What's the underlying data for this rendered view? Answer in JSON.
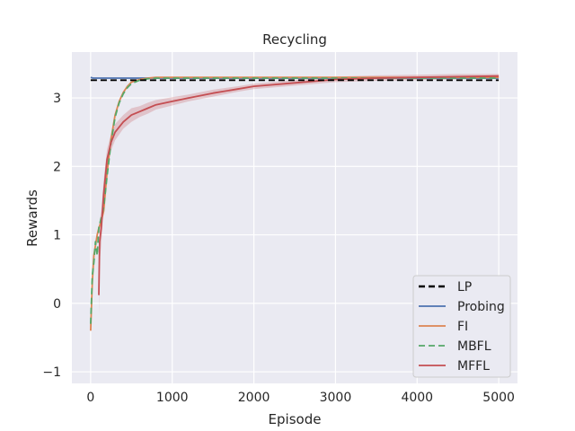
{
  "chart_data": {
    "type": "line",
    "title": "Recycling",
    "xlabel": "Episode",
    "ylabel": "Rewards",
    "xlim": [
      -230,
      5230
    ],
    "ylim": [
      -1.17,
      3.67
    ],
    "xticks": [
      0,
      1000,
      2000,
      3000,
      4000,
      5000
    ],
    "xtick_labels": [
      "0",
      "1000",
      "2000",
      "3000",
      "4000",
      "5000"
    ],
    "yticks": [
      -1,
      0,
      1,
      2,
      3
    ],
    "ytick_labels": [
      "−1",
      "0",
      "1",
      "2",
      "3"
    ],
    "grid": true,
    "legend_position": "lower-right",
    "series": [
      {
        "name": "LP",
        "color": "#000000",
        "style": "dashed",
        "x": [
          0,
          5000
        ],
        "y": [
          3.26,
          3.26
        ]
      },
      {
        "name": "Probing",
        "color": "#4c72b0",
        "style": "solid",
        "x": [
          0,
          30,
          100,
          1000,
          2000,
          3000,
          4000,
          5000
        ],
        "y": [
          3.3,
          3.29,
          3.29,
          3.29,
          3.29,
          3.29,
          3.29,
          3.29
        ]
      },
      {
        "name": "FI",
        "color": "#dd8452",
        "style": "solid",
        "x": [
          0,
          20,
          40,
          60,
          80,
          100,
          130,
          160,
          200,
          250,
          300,
          350,
          400,
          450,
          500,
          600,
          700,
          800,
          1000,
          2000,
          3000,
          4000,
          5000
        ],
        "y": [
          -0.4,
          0.3,
          0.7,
          0.85,
          1.0,
          1.1,
          1.2,
          1.35,
          1.9,
          2.4,
          2.75,
          2.95,
          3.08,
          3.17,
          3.23,
          3.27,
          3.29,
          3.3,
          3.3,
          3.3,
          3.3,
          3.3,
          3.3
        ]
      },
      {
        "name": "MBFL",
        "color": "#55a868",
        "style": "dashed",
        "x": [
          0,
          20,
          40,
          60,
          80,
          100,
          130,
          160,
          200,
          250,
          300,
          350,
          400,
          450,
          500,
          600,
          700,
          800,
          1000,
          2000,
          3000,
          4000,
          5000
        ],
        "y": [
          -0.3,
          0.4,
          0.6,
          0.9,
          0.7,
          1.1,
          1.25,
          1.4,
          1.85,
          2.35,
          2.72,
          2.93,
          3.06,
          3.15,
          3.21,
          3.26,
          3.28,
          3.29,
          3.29,
          3.29,
          3.29,
          3.29,
          3.29
        ]
      },
      {
        "name": "MFFL",
        "color": "#c44e52",
        "style": "solid",
        "x": [
          100,
          110,
          130,
          160,
          200,
          250,
          300,
          400,
          500,
          600,
          700,
          800,
          1000,
          1200,
          1500,
          1800,
          2000,
          2500,
          3000,
          3500,
          4000,
          4500,
          5000
        ],
        "y": [
          0.12,
          0.9,
          1.1,
          1.6,
          2.1,
          2.35,
          2.5,
          2.65,
          2.75,
          2.8,
          2.85,
          2.9,
          2.95,
          3.0,
          3.07,
          3.13,
          3.17,
          3.22,
          3.27,
          3.29,
          3.3,
          3.31,
          3.32
        ],
        "band_halfwidth": [
          0.3,
          0.3,
          0.25,
          0.2,
          0.15,
          0.12,
          0.12,
          0.1,
          0.1,
          0.08,
          0.08,
          0.07,
          0.06,
          0.05,
          0.05,
          0.04,
          0.04,
          0.04,
          0.04,
          0.04,
          0.04,
          0.04,
          0.03
        ]
      }
    ]
  }
}
